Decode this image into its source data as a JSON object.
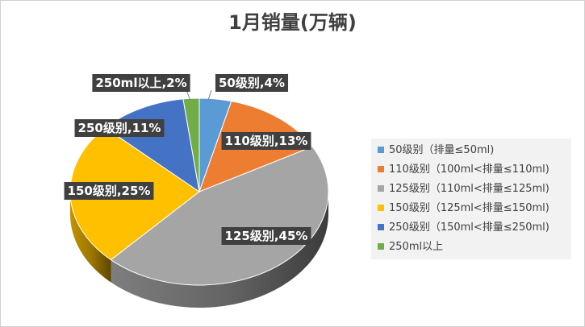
{
  "chart_data": {
    "type": "pie",
    "title": "1月销量(万辆)",
    "categories": [
      "50级别（排量≤50ml)",
      "110级别（100ml<排量≤110ml)",
      "125级别（110ml<排量≤125ml)",
      "150级别（125ml<排量≤150ml)",
      "250级别（150ml<排量≤250ml)",
      "250ml以上"
    ],
    "values": [
      4,
      13,
      45,
      25,
      11,
      2
    ],
    "data_labels": [
      "50级别,4%",
      "110级别,13%",
      "125级别,45%",
      "150级别,25%",
      "250级别,11%",
      "250ml以上,2%"
    ],
    "colors": [
      "#5b9bd5",
      "#ed7d31",
      "#a5a5a5",
      "#ffc000",
      "#4472c4",
      "#70ad47"
    ],
    "legend_position": "right"
  }
}
